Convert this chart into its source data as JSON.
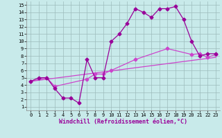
{
  "bg_color": "#c8eaea",
  "grid_color": "#9cbcbc",
  "line_color_dark": "#990099",
  "line_color_light": "#cc44cc",
  "xlabel": "Windchill (Refroidissement éolien,°C)",
  "xlim": [
    -0.5,
    23.5
  ],
  "ylim": [
    0.5,
    15.5
  ],
  "xticks": [
    0,
    1,
    2,
    3,
    4,
    5,
    6,
    7,
    8,
    9,
    10,
    11,
    12,
    13,
    14,
    15,
    16,
    17,
    18,
    19,
    20,
    21,
    22,
    23
  ],
  "yticks": [
    1,
    2,
    3,
    4,
    5,
    6,
    7,
    8,
    9,
    10,
    11,
    12,
    13,
    14,
    15
  ],
  "curve1_x": [
    0,
    1,
    2,
    3,
    4,
    5,
    6,
    7,
    8,
    9,
    10,
    11,
    12,
    13,
    14,
    15,
    16,
    17,
    18,
    19,
    20,
    21,
    22,
    23
  ],
  "curve1_y": [
    4.5,
    5.0,
    5.0,
    3.5,
    2.2,
    2.2,
    1.5,
    7.5,
    5.0,
    5.0,
    10.0,
    11.0,
    12.5,
    14.5,
    14.0,
    13.3,
    14.5,
    14.5,
    14.8,
    13.0,
    10.0,
    8.0,
    8.3,
    8.3
  ],
  "curve2_x": [
    0,
    2,
    3,
    7,
    8,
    9,
    10,
    13,
    17,
    20,
    21,
    22,
    23
  ],
  "curve2_y": [
    4.5,
    5.0,
    3.8,
    4.8,
    5.5,
    5.5,
    6.0,
    7.5,
    9.0,
    8.2,
    8.3,
    7.8,
    8.2
  ],
  "curve3_x": [
    0,
    23
  ],
  "curve3_y": [
    4.5,
    7.8
  ],
  "marker_size": 2.5,
  "linewidth": 0.9,
  "tick_fontsize": 5.0,
  "xlabel_fontsize": 6.0
}
